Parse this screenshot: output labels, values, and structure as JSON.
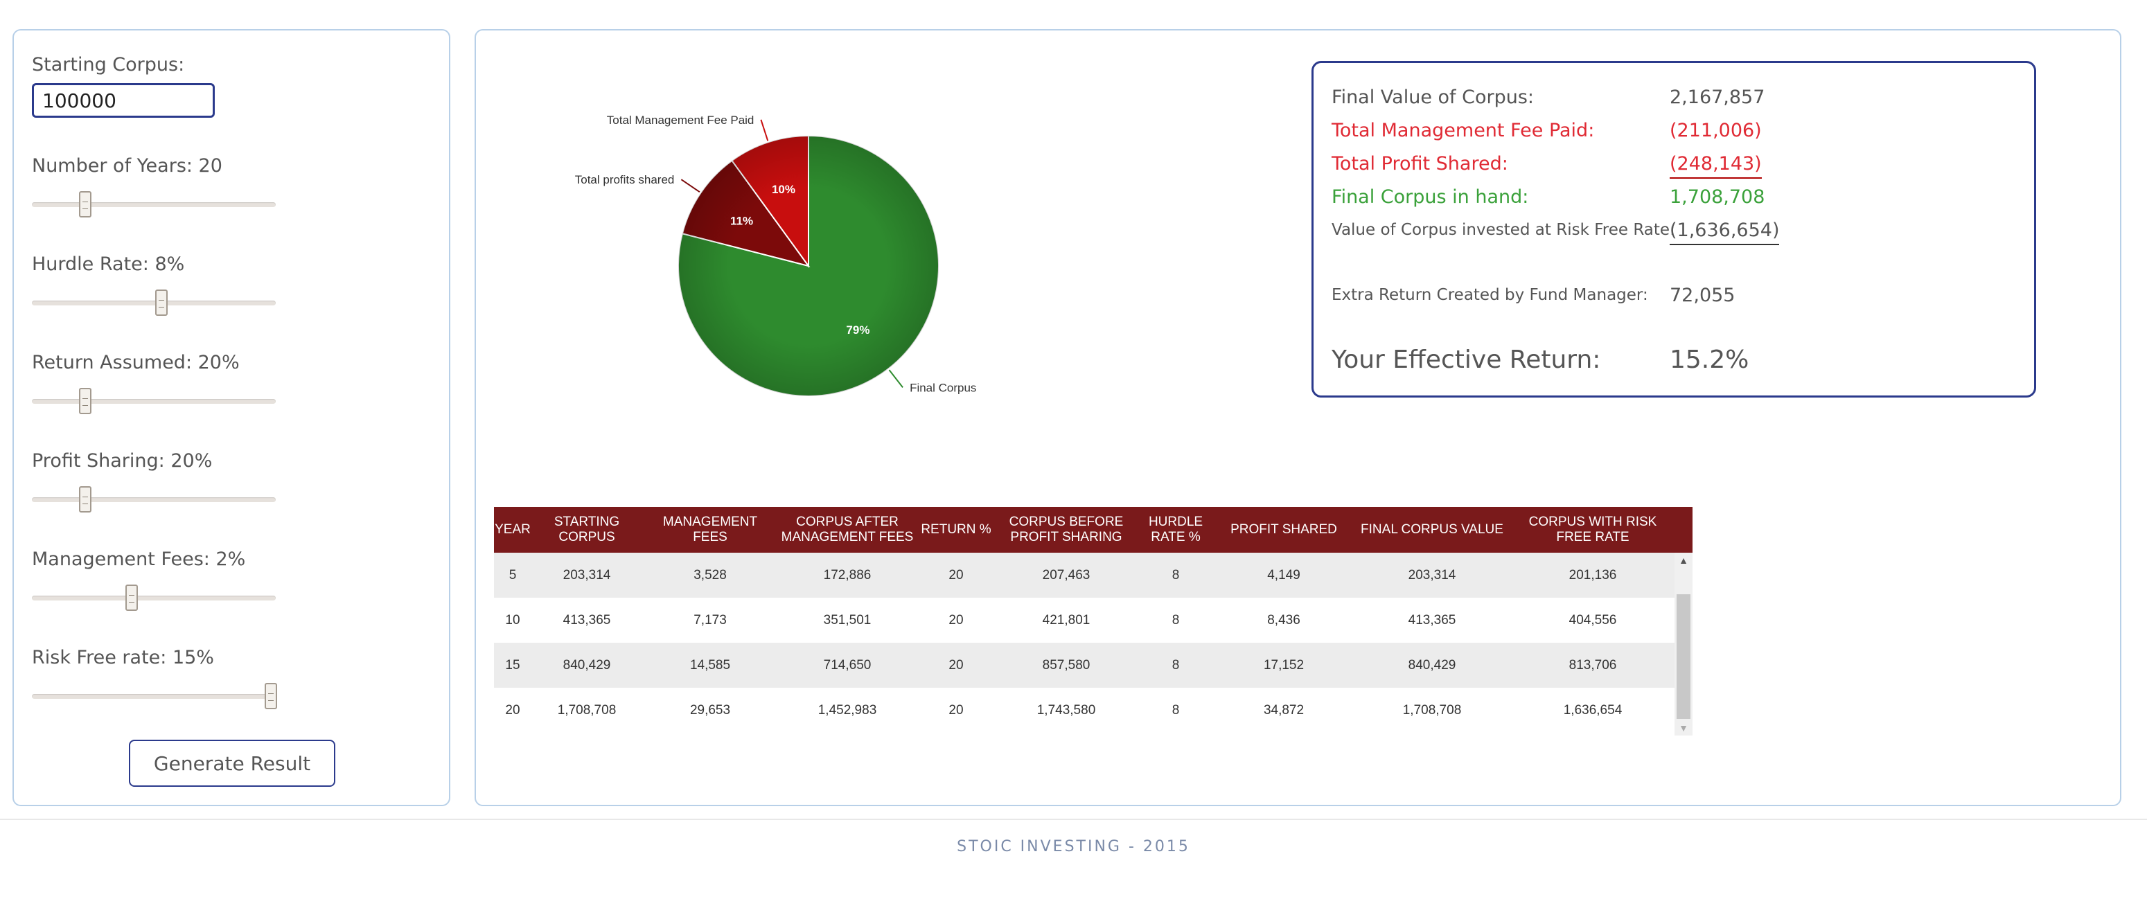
{
  "controls": {
    "starting_corpus_label": "Starting Corpus:",
    "starting_corpus_value": "100000",
    "years_label": "Number of Years: 20",
    "years_level": 0.22,
    "hurdle_label": "Hurdle Rate: 8%",
    "hurdle_level": 0.53,
    "return_label": "Return Assumed: 20%",
    "return_level": 0.22,
    "profit_sharing_label": "Profit Sharing: 20%",
    "profit_sharing_level": 0.22,
    "management_fees_label": "Management Fees: 2%",
    "management_fees_level": 0.41,
    "risk_free_label": "Risk Free rate: 15%",
    "risk_free_level": 0.98,
    "generate_button": "Generate Result"
  },
  "chart_data": {
    "type": "pie",
    "slices": [
      {
        "label": "Final Corpus",
        "pct_label": "79%",
        "value": 79,
        "color": "#2e8b2e"
      },
      {
        "label": "Total profits shared",
        "pct_label": "11%",
        "value": 11,
        "color": "#7c0a0a"
      },
      {
        "label": "Total Management Fee Paid",
        "pct_label": "10%",
        "value": 10,
        "color": "#c80e0e"
      }
    ]
  },
  "summary": {
    "final_value_label": "Final Value of Corpus:",
    "final_value": "2,167,857",
    "mgmt_fee_label": "Total Management Fee Paid:",
    "mgmt_fee_value": "(211,006)",
    "profit_shared_label": "Total Profit Shared:",
    "profit_shared_value": "(248,143)",
    "final_in_hand_label": "Final Corpus in hand:",
    "final_in_hand_value": "1,708,708",
    "risk_free_label": "Value of Corpus invested at Risk Free Rate:",
    "risk_free_value": "(1,636,654)",
    "extra_return_label": "Extra Return Created by Fund Manager:",
    "extra_return_value": "72,055",
    "effective_return_label": "Your Effective Return:",
    "effective_return_value": "15.2%"
  },
  "table": {
    "headers": [
      "YEAR",
      "STARTING CORPUS",
      "MANAGEMENT FEES",
      "CORPUS AFTER MANAGEMENT FEES",
      "RETURN %",
      "CORPUS BEFORE PROFIT SHARING",
      "HURDLE RATE %",
      "PROFIT SHARED",
      "FINAL CORPUS VALUE",
      "CORPUS WITH RISK FREE RATE"
    ],
    "rows": [
      [
        "5",
        "203,314",
        "3,528",
        "172,886",
        "20",
        "207,463",
        "8",
        "4,149",
        "203,314",
        "201,136"
      ],
      [
        "10",
        "413,365",
        "7,173",
        "351,501",
        "20",
        "421,801",
        "8",
        "8,436",
        "413,365",
        "404,556"
      ],
      [
        "15",
        "840,429",
        "14,585",
        "714,650",
        "20",
        "857,580",
        "8",
        "17,152",
        "840,429",
        "813,706"
      ],
      [
        "20",
        "1,708,708",
        "29,653",
        "1,452,983",
        "20",
        "1,743,580",
        "8",
        "34,872",
        "1,708,708",
        "1,636,654"
      ]
    ]
  },
  "footer": {
    "text": "STOIC INVESTING - 2015"
  }
}
